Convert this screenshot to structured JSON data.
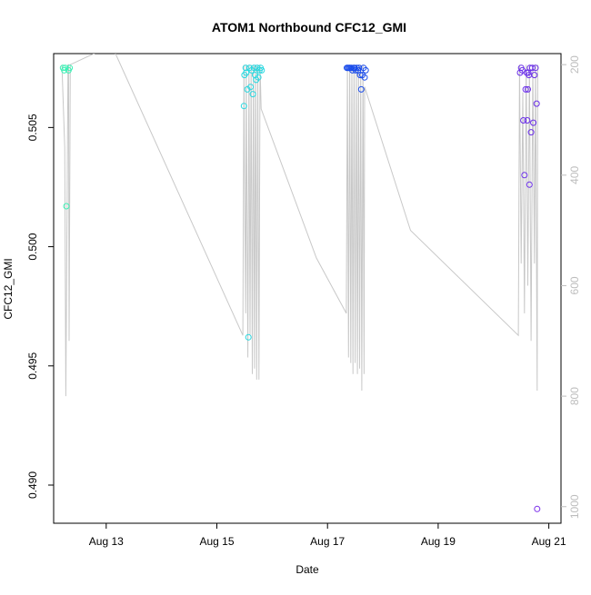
{
  "chart_data": {
    "type": "scatter",
    "title": "ATOM1 Northbound CFC12_GMI",
    "xlabel": "Date",
    "ylabel": "CFC12_GMI",
    "x_ticks": [
      "Aug 13",
      "Aug 15",
      "Aug 17",
      "Aug 19",
      "Aug 21"
    ],
    "x_tick_days": [
      13,
      15,
      17,
      19,
      21
    ],
    "xlim": [
      12.05,
      21.22
    ],
    "y_ticks": [
      0.49,
      0.495,
      0.5,
      0.505
    ],
    "y_tick_labels": [
      "0.490",
      "0.495",
      "0.500",
      "0.505"
    ],
    "ylim": [
      0.4884,
      0.5081
    ],
    "right_axis": {
      "ticks": [
        200,
        400,
        600,
        800,
        1000
      ],
      "tick_labels": [
        "200",
        "400",
        "600",
        "800",
        "1000"
      ],
      "lim": [
        180,
        1030
      ],
      "color": "#bdbdbd"
    },
    "pressure_line_color": "#c8c8c8",
    "flight_color_gradient": [
      "#3df2b6",
      "#22cde8",
      "#1b4dec",
      "#7a2dea"
    ],
    "points": [
      {
        "x": 12.22,
        "y": 0.5075,
        "c": "#3df2b6"
      },
      {
        "x": 12.24,
        "y": 0.5074,
        "c": "#3df2b6"
      },
      {
        "x": 12.26,
        "y": 0.5075,
        "c": "#3df2b6"
      },
      {
        "x": 12.28,
        "y": 0.5017,
        "c": "#3df2b6"
      },
      {
        "x": 12.32,
        "y": 0.5074,
        "c": "#3df2b6"
      },
      {
        "x": 12.34,
        "y": 0.5075,
        "c": "#3df2b6"
      },
      {
        "x": 15.49,
        "y": 0.5059,
        "c": "#28d8e0"
      },
      {
        "x": 15.5,
        "y": 0.5072,
        "c": "#28d8e0"
      },
      {
        "x": 15.52,
        "y": 0.5075,
        "c": "#28d8e0"
      },
      {
        "x": 15.53,
        "y": 0.5073,
        "c": "#28d8e0"
      },
      {
        "x": 15.55,
        "y": 0.5066,
        "c": "#28d8e0"
      },
      {
        "x": 15.57,
        "y": 0.4962,
        "c": "#28d8e0"
      },
      {
        "x": 15.59,
        "y": 0.5075,
        "c": "#28d8e0"
      },
      {
        "x": 15.61,
        "y": 0.5067,
        "c": "#28d8e0"
      },
      {
        "x": 15.63,
        "y": 0.5074,
        "c": "#28d8e0"
      },
      {
        "x": 15.65,
        "y": 0.5064,
        "c": "#28d8e0"
      },
      {
        "x": 15.67,
        "y": 0.5075,
        "c": "#28d8e0"
      },
      {
        "x": 15.69,
        "y": 0.5072,
        "c": "#28d8e0"
      },
      {
        "x": 15.71,
        "y": 0.507,
        "c": "#28d8e0"
      },
      {
        "x": 15.73,
        "y": 0.5075,
        "c": "#28d8e0"
      },
      {
        "x": 15.75,
        "y": 0.5071,
        "c": "#28d8e0"
      },
      {
        "x": 15.77,
        "y": 0.5074,
        "c": "#28d8e0"
      },
      {
        "x": 15.79,
        "y": 0.5075,
        "c": "#28d8e0"
      },
      {
        "x": 15.81,
        "y": 0.5074,
        "c": "#28d8e0"
      },
      {
        "x": 17.35,
        "y": 0.5075,
        "c": "#1b4dec"
      },
      {
        "x": 17.37,
        "y": 0.5075,
        "c": "#1b4dec"
      },
      {
        "x": 17.39,
        "y": 0.5075,
        "c": "#1b4dec"
      },
      {
        "x": 17.41,
        "y": 0.5075,
        "c": "#1b4dec"
      },
      {
        "x": 17.43,
        "y": 0.5075,
        "c": "#1b4dec"
      },
      {
        "x": 17.45,
        "y": 0.5074,
        "c": "#1b4dec"
      },
      {
        "x": 17.47,
        "y": 0.5075,
        "c": "#1b4dec"
      },
      {
        "x": 17.49,
        "y": 0.5075,
        "c": "#1b4dec"
      },
      {
        "x": 17.51,
        "y": 0.5074,
        "c": "#1b4dec"
      },
      {
        "x": 17.53,
        "y": 0.5075,
        "c": "#1b4dec"
      },
      {
        "x": 17.55,
        "y": 0.5074,
        "c": "#1b4dec"
      },
      {
        "x": 17.57,
        "y": 0.5075,
        "c": "#1b4dec"
      },
      {
        "x": 17.59,
        "y": 0.5072,
        "c": "#1b4dec"
      },
      {
        "x": 17.61,
        "y": 0.5066,
        "c": "#1b4dec"
      },
      {
        "x": 17.63,
        "y": 0.5072,
        "c": "#1b4dec"
      },
      {
        "x": 17.65,
        "y": 0.5075,
        "c": "#1b4dec"
      },
      {
        "x": 17.67,
        "y": 0.5071,
        "c": "#1b4dec"
      },
      {
        "x": 17.69,
        "y": 0.5074,
        "c": "#1b4dec"
      },
      {
        "x": 20.48,
        "y": 0.5073,
        "c": "#6a2ee8"
      },
      {
        "x": 20.5,
        "y": 0.5075,
        "c": "#6a2ee8"
      },
      {
        "x": 20.52,
        "y": 0.5074,
        "c": "#6a2ee8"
      },
      {
        "x": 20.54,
        "y": 0.5053,
        "c": "#6a2ee8"
      },
      {
        "x": 20.56,
        "y": 0.503,
        "c": "#6a2ee8"
      },
      {
        "x": 20.58,
        "y": 0.5066,
        "c": "#6a2ee8"
      },
      {
        "x": 20.6,
        "y": 0.5073,
        "c": "#6a2ee8"
      },
      {
        "x": 20.61,
        "y": 0.5053,
        "c": "#6a2ee8"
      },
      {
        "x": 20.62,
        "y": 0.5066,
        "c": "#6a2ee8"
      },
      {
        "x": 20.63,
        "y": 0.5073,
        "c": "#6a2ee8"
      },
      {
        "x": 20.64,
        "y": 0.5072,
        "c": "#6a2ee8"
      },
      {
        "x": 20.65,
        "y": 0.5026,
        "c": "#6a2ee8"
      },
      {
        "x": 20.66,
        "y": 0.5075,
        "c": "#6a2ee8"
      },
      {
        "x": 20.68,
        "y": 0.5048,
        "c": "#6a2ee8"
      },
      {
        "x": 20.7,
        "y": 0.5075,
        "c": "#6a2ee8"
      },
      {
        "x": 20.72,
        "y": 0.5052,
        "c": "#6a2ee8"
      },
      {
        "x": 20.74,
        "y": 0.5072,
        "c": "#6a2ee8"
      },
      {
        "x": 20.76,
        "y": 0.5075,
        "c": "#6a2ee8"
      },
      {
        "x": 20.78,
        "y": 0.506,
        "c": "#6a2ee8"
      },
      {
        "x": 20.79,
        "y": 0.489,
        "c": "#7a2dea"
      }
    ],
    "pressure_trace": [
      [
        12.2,
        200
      ],
      [
        12.25,
        350
      ],
      [
        12.27,
        800
      ],
      [
        12.29,
        500
      ],
      [
        12.31,
        200
      ],
      [
        12.32,
        200
      ],
      [
        12.33,
        700
      ],
      [
        12.35,
        200
      ],
      [
        13.1,
        165
      ],
      [
        15.47,
        690
      ],
      [
        15.49,
        200
      ],
      [
        15.5,
        400
      ],
      [
        15.52,
        650
      ],
      [
        15.53,
        200
      ],
      [
        15.56,
        730
      ],
      [
        15.58,
        200
      ],
      [
        15.6,
        690
      ],
      [
        15.62,
        200
      ],
      [
        15.64,
        760
      ],
      [
        15.66,
        200
      ],
      [
        15.68,
        750
      ],
      [
        15.7,
        200
      ],
      [
        15.72,
        770
      ],
      [
        15.74,
        200
      ],
      [
        15.76,
        770
      ],
      [
        15.78,
        200
      ],
      [
        15.8,
        280
      ],
      [
        16.8,
        550
      ],
      [
        17.34,
        650
      ],
      [
        17.36,
        200
      ],
      [
        17.38,
        730
      ],
      [
        17.4,
        200
      ],
      [
        17.42,
        740
      ],
      [
        17.44,
        200
      ],
      [
        17.46,
        760
      ],
      [
        17.48,
        200
      ],
      [
        17.5,
        740
      ],
      [
        17.52,
        200
      ],
      [
        17.54,
        760
      ],
      [
        17.56,
        200
      ],
      [
        17.58,
        750
      ],
      [
        17.6,
        200
      ],
      [
        17.62,
        790
      ],
      [
        17.64,
        200
      ],
      [
        17.66,
        760
      ],
      [
        17.67,
        240
      ],
      [
        18.5,
        500
      ],
      [
        20.45,
        690
      ],
      [
        20.47,
        200
      ],
      [
        20.5,
        560
      ],
      [
        20.53,
        250
      ],
      [
        20.56,
        650
      ],
      [
        20.59,
        200
      ],
      [
        20.62,
        600
      ],
      [
        20.65,
        200
      ],
      [
        20.68,
        700
      ],
      [
        20.71,
        200
      ],
      [
        20.74,
        560
      ],
      [
        20.76,
        200
      ],
      [
        20.79,
        790
      ],
      [
        20.8,
        200
      ]
    ]
  }
}
